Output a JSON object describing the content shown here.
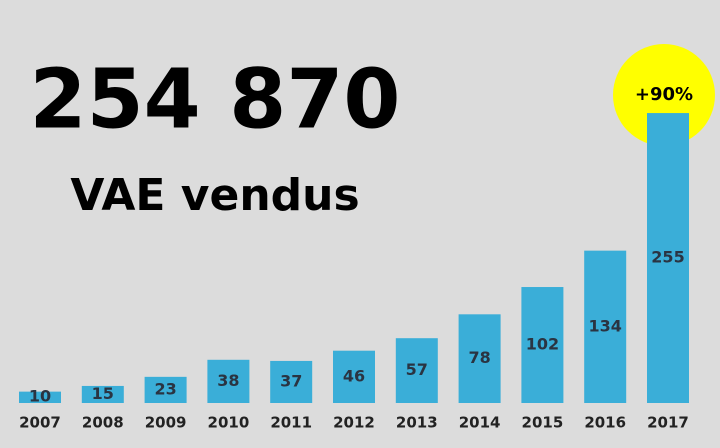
{
  "chart_data": {
    "type": "bar",
    "title": "254 870",
    "subtitle": "VAE vendus",
    "annotation": "+90%",
    "categories": [
      "2007",
      "2008",
      "2009",
      "2010",
      "2011",
      "2012",
      "2013",
      "2014",
      "2015",
      "2016",
      "2017"
    ],
    "values": [
      10,
      15,
      23,
      38,
      37,
      46,
      57,
      78,
      102,
      134,
      255
    ],
    "color": "#3aaed8",
    "highlight_color": "#ffff00"
  }
}
